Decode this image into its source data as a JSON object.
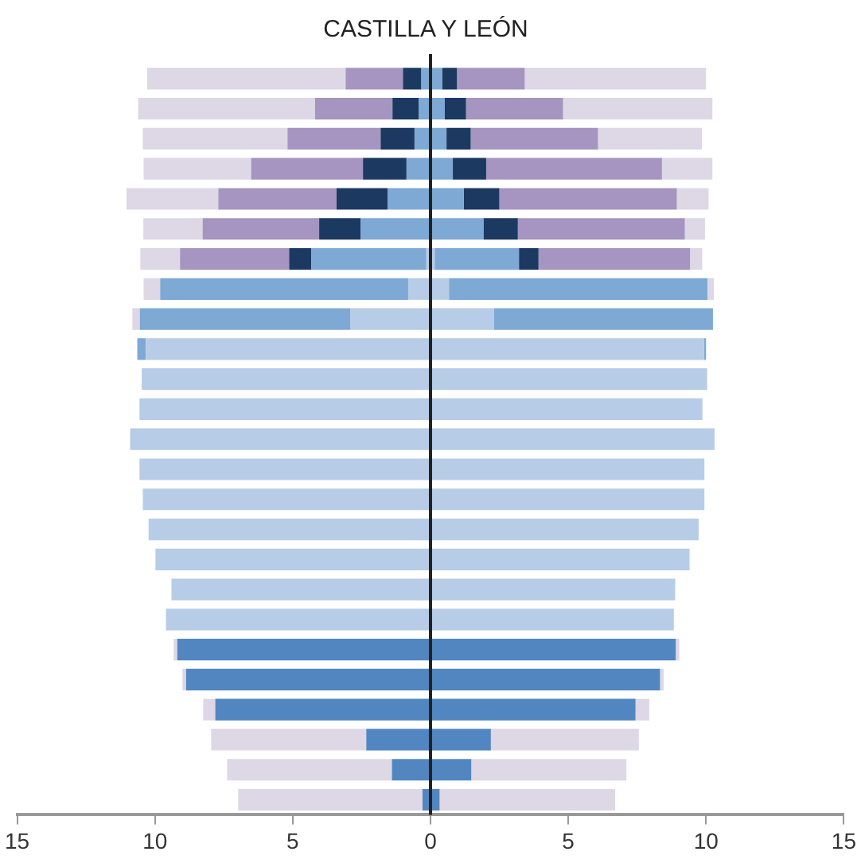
{
  "chart_data": {
    "type": "bar",
    "title": "CASTILLA Y LEÓN",
    "orientation": "horizontal",
    "stacked": true,
    "categories": [
      null,
      null,
      null,
      null,
      null,
      null,
      null,
      null,
      null,
      null,
      null,
      null,
      null,
      null,
      null,
      null,
      null,
      null,
      null,
      null,
      null,
      null,
      null,
      null,
      null
    ],
    "series": [
      {
        "color": "#5286c0",
        "values": [
          null,
          null,
          null,
          null,
          null,
          null,
          null,
          null,
          null,
          null,
          null,
          null,
          null,
          null,
          null,
          null,
          null,
          null,
          null,
          -9.19,
          -8.87,
          -7.81,
          -2.33,
          -1.4,
          -0.29
        ]
      },
      {
        "color": "#b7cce6",
        "values": [
          null,
          null,
          null,
          null,
          null,
          null,
          -0.15,
          -0.81,
          -2.9,
          -10.33,
          -10.48,
          -10.56,
          -10.9,
          -10.56,
          -10.44,
          -10.23,
          -9.98,
          -9.4,
          -9.6,
          null,
          null,
          null,
          null,
          null,
          null
        ]
      },
      {
        "color": "#7ea9d5",
        "values": [
          -0.33,
          -0.42,
          -0.58,
          -0.87,
          -1.56,
          -2.54,
          -4.17,
          -9.0,
          -7.65,
          -0.31,
          null,
          null,
          null,
          null,
          null,
          null,
          null,
          null,
          null,
          null,
          null,
          null,
          null,
          null,
          null
        ]
      },
      {
        "color": "#1c3961",
        "values": [
          -0.67,
          -0.96,
          -1.23,
          -1.58,
          -1.85,
          -1.5,
          -0.81,
          null,
          null,
          null,
          null,
          null,
          null,
          null,
          null,
          null,
          null,
          null,
          null,
          null,
          null,
          null,
          null,
          null,
          null
        ]
      },
      {
        "color": "#a595c0",
        "values": [
          -2.08,
          -2.81,
          -3.38,
          -4.06,
          -4.29,
          -4.23,
          -3.96,
          null,
          null,
          null,
          null,
          null,
          null,
          null,
          null,
          null,
          null,
          null,
          null,
          null,
          null,
          null,
          null,
          null,
          null
        ]
      },
      {
        "color": "#ddd7e6",
        "values": [
          -7.2,
          -6.42,
          -5.25,
          -3.9,
          -3.33,
          -2.15,
          -1.44,
          -0.6,
          -0.27,
          null,
          null,
          null,
          null,
          null,
          null,
          null,
          null,
          null,
          null,
          -0.13,
          -0.13,
          -0.44,
          -5.63,
          -5.98,
          -6.69
        ]
      },
      {
        "color": "#5286c0",
        "values": [
          null,
          null,
          null,
          null,
          null,
          null,
          null,
          null,
          null,
          null,
          null,
          null,
          null,
          null,
          null,
          null,
          null,
          null,
          null,
          8.9,
          8.33,
          7.44,
          2.19,
          1.48,
          0.33
        ]
      },
      {
        "color": "#b7cce6",
        "values": [
          null,
          null,
          null,
          null,
          null,
          null,
          0.15,
          0.67,
          2.31,
          9.92,
          10.04,
          9.87,
          10.31,
          9.94,
          9.94,
          9.73,
          9.4,
          8.88,
          8.83,
          null,
          null,
          null,
          null,
          null,
          null
        ]
      },
      {
        "color": "#7ea9d5",
        "values": [
          0.42,
          0.52,
          0.58,
          0.81,
          1.21,
          1.92,
          3.06,
          9.38,
          7.94,
          0.08,
          null,
          null,
          null,
          null,
          null,
          null,
          null,
          null,
          null,
          null,
          null,
          null,
          null,
          null,
          null
        ]
      },
      {
        "color": "#1c3961",
        "values": [
          0.54,
          0.77,
          0.88,
          1.21,
          1.29,
          1.25,
          0.71,
          null,
          null,
          null,
          null,
          null,
          null,
          null,
          null,
          null,
          null,
          null,
          null,
          null,
          null,
          null,
          null,
          null,
          null
        ]
      },
      {
        "color": "#a595c0",
        "values": [
          2.46,
          3.52,
          4.62,
          6.38,
          6.44,
          6.06,
          5.5,
          null,
          null,
          null,
          null,
          null,
          null,
          null,
          null,
          null,
          null,
          null,
          null,
          null,
          null,
          null,
          null,
          null,
          null
        ]
      },
      {
        "color": "#ddd7e6",
        "values": [
          6.58,
          5.42,
          3.77,
          1.83,
          1.15,
          0.73,
          0.44,
          0.23,
          null,
          null,
          null,
          null,
          null,
          null,
          null,
          null,
          null,
          null,
          null,
          0.13,
          0.13,
          0.5,
          5.37,
          5.63,
          6.37
        ]
      }
    ],
    "xlim": [
      -15,
      15
    ],
    "xticks": [
      {
        "value": -15,
        "label": "15"
      },
      {
        "value": -10,
        "label": "10"
      },
      {
        "value": -5,
        "label": "5"
      },
      0,
      5,
      10,
      15
    ],
    "ref_lines": [
      {
        "axis": "x",
        "value": 0,
        "color": "#222222"
      }
    ],
    "tick_labels": "x",
    "grid": false,
    "legend": false
  }
}
